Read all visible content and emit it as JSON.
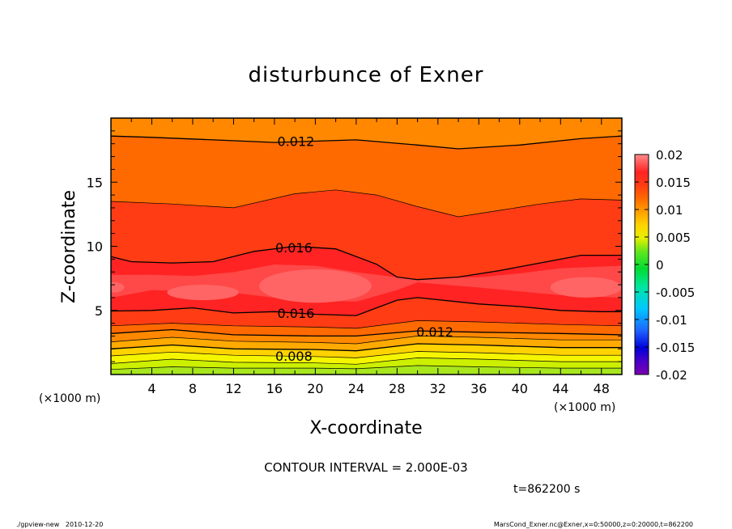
{
  "chart_data": {
    "type": "heatmap",
    "title": "disturbunce of Exner",
    "xlabel": "X-coordinate",
    "ylabel": "Z-coordinate",
    "x_unit": "(×1000 m)",
    "y_unit": "(×1000 m)",
    "xlim": [
      0,
      50
    ],
    "ylim": [
      0,
      20
    ],
    "x_ticks": [
      "4",
      "8",
      "12",
      "16",
      "20",
      "24",
      "28",
      "32",
      "36",
      "40",
      "44",
      "48"
    ],
    "y_ticks": [
      "5",
      "10",
      "15"
    ],
    "colorbar": {
      "labels": [
        "0.02",
        "0.015",
        "0.01",
        "0.005",
        "0",
        "-0.005",
        "-0.01",
        "-0.015",
        "-0.02"
      ],
      "min": -0.02,
      "max": 0.02
    },
    "contour_labels": [
      "0.012",
      "0.016",
      "0.016",
      "0.012",
      "0.008"
    ],
    "contour_interval_text": "CONTOUR INTERVAL = 2.000E-03",
    "time_text": "t=862200 s",
    "colors": {
      "c0.000": "#a8e61e",
      "c0.002": "#ccf000",
      "c0.004": "#f5f500",
      "c0.006": "#ffd200",
      "c0.008": "#ffaa00",
      "c0.010": "#ff8800",
      "c0.012": "#ff6a00",
      "c0.014": "#ff3c14",
      "c0.016": "#ff2323",
      "c0.018": "#ff4848",
      "c0.020": "#ff6565"
    },
    "grid": false
  },
  "footer": {
    "left": "./gpview-new   2010-12-20",
    "right": "MarsCond_Exner.nc@Exner,x=0:50000,z=0:20000,t=862200"
  }
}
